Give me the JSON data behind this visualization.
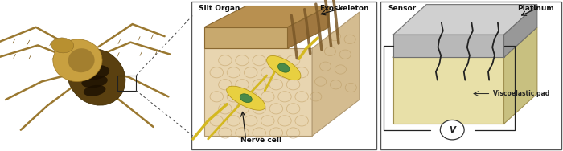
{
  "background_color": "#ffffff",
  "fig_width": 7.0,
  "fig_height": 1.88,
  "dpi": 100,
  "panel2": {
    "border_color": "#555555",
    "label_slit_organ": "Slit Organ",
    "label_exoskeleton": "Exoskeleton",
    "label_nerve_cell": "Nerve cell",
    "tissue_color": "#e8d5b0",
    "tissue_right": "#d4bc90",
    "tissue_top": "#cdb98a",
    "exo_color": "#c8a96e",
    "exo_top": "#b89050",
    "exo_right": "#a07840",
    "exo_dark_top": "#8a6830",
    "slit_color": "#7a5828",
    "cell_body": "#e8d040",
    "cell_body2": "#d4c030",
    "cell_nucleus": "#4a8a4a",
    "axon_color": "#d4b820"
  },
  "panel3": {
    "border_color": "#555555",
    "label_sensor": "Sensor",
    "label_platinum": "Platinum",
    "label_viscoelastic": "Viscoelastic pad",
    "label_v": "V",
    "pad_front": "#e8e0a8",
    "pad_top": "#d8d098",
    "pad_right": "#c8c080",
    "plat_front": "#b8b8b8",
    "plat_top": "#d0d0d0",
    "plat_right": "#989898",
    "crack_color": "#222222",
    "wire_color": "#222222"
  },
  "dashed_line_color": "#555555"
}
